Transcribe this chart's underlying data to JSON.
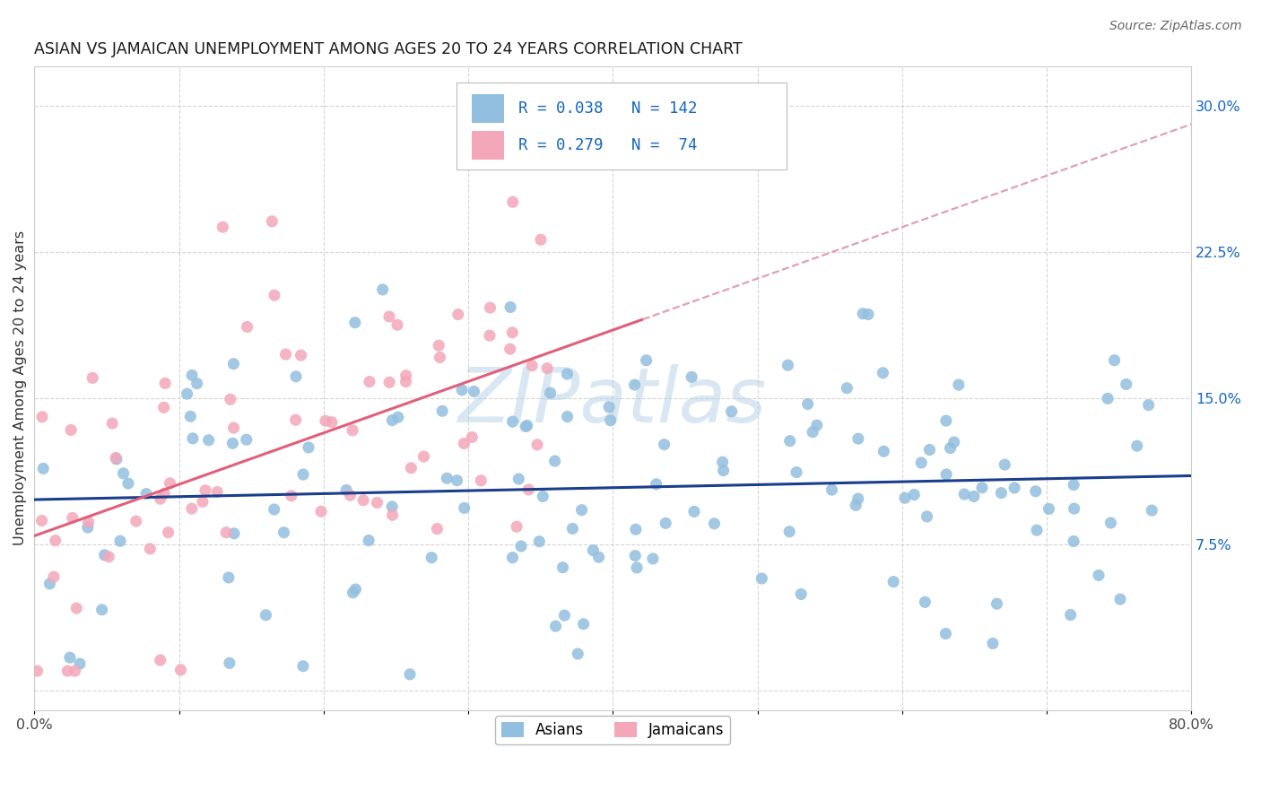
{
  "title": "ASIAN VS JAMAICAN UNEMPLOYMENT AMONG AGES 20 TO 24 YEARS CORRELATION CHART",
  "source": "Source: ZipAtlas.com",
  "ylabel": "Unemployment Among Ages 20 to 24 years",
  "xlim": [
    0.0,
    0.8
  ],
  "ylim": [
    -0.01,
    0.32
  ],
  "asian_color": "#92bfdf",
  "jamaican_color": "#f4a7b9",
  "asian_line_color": "#1a3e8c",
  "jamaican_line_color": "#e0607a",
  "jamaican_dash_color": "#e0a0b0",
  "R_asian": 0.038,
  "N_asian": 142,
  "R_jamaican": 0.279,
  "N_jamaican": 74,
  "legend_text_color": "#1565C0",
  "legend_N_color": "#222222",
  "watermark_color": "#b8d4e8",
  "background_color": "#ffffff",
  "grid_color": "#d0d0d0"
}
